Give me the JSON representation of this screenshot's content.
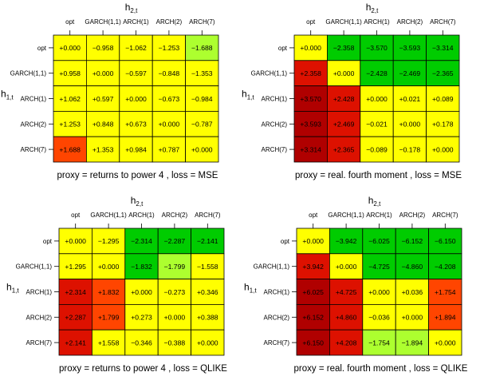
{
  "colors": {
    "yellow": "#ffff00",
    "yellowgreen": "#adff2f",
    "green": "#00cc00",
    "orangered": "#ff4500",
    "red": "#dd1100",
    "darkred": "#b00000"
  },
  "chart_data": [
    {
      "type": "heatmap",
      "title": "proxy = returns to power 4 , loss = MSE",
      "xlabel": "h",
      "xlabel_sub": "2,t",
      "ylabel": "h",
      "ylabel_sub": "1,t",
      "col_labels": [
        "opt",
        "GARCH(1,1)",
        "ARCH(1)",
        "ARCH(2)",
        "ARCH(7)"
      ],
      "row_labels": [
        "opt",
        "GARCH(1,1)",
        "ARCH(1)",
        "ARCH(2)",
        "ARCH(7)"
      ],
      "cells": [
        [
          "+0.000",
          "−0.958",
          "−1.062",
          "−1.253",
          "−1.688"
        ],
        [
          "+0.958",
          "+0.000",
          "−0.597",
          "−0.848",
          "−1.353"
        ],
        [
          "+1.062",
          "+0.597",
          "+0.000",
          "−0.673",
          "−0.984"
        ],
        [
          "+1.253",
          "+0.848",
          "+0.673",
          "+0.000",
          "−0.787"
        ],
        [
          "+1.688",
          "+1.353",
          "+0.984",
          "+0.787",
          "+0.000"
        ]
      ],
      "colors": [
        [
          "yellow",
          "yellow",
          "yellow",
          "yellow",
          "yellowgreen"
        ],
        [
          "yellow",
          "yellow",
          "yellow",
          "yellow",
          "yellow"
        ],
        [
          "yellow",
          "yellow",
          "yellow",
          "yellow",
          "yellow"
        ],
        [
          "yellow",
          "yellow",
          "yellow",
          "yellow",
          "yellow"
        ],
        [
          "orangered",
          "yellow",
          "yellow",
          "yellow",
          "yellow"
        ]
      ]
    },
    {
      "type": "heatmap",
      "title": "proxy = real. fourth moment , loss = MSE",
      "xlabel": "h",
      "xlabel_sub": "2,t",
      "ylabel": "h",
      "ylabel_sub": "1,t",
      "col_labels": [
        "opt",
        "GARCH(1,1)",
        "ARCH(1)",
        "ARCH(2)",
        "ARCH(7)"
      ],
      "row_labels": [
        "opt",
        "GARCH(1,1)",
        "ARCH(1)",
        "ARCH(2)",
        "ARCH(7)"
      ],
      "cells": [
        [
          "+0.000",
          "−2.358",
          "−3.570",
          "−3.593",
          "−3.314"
        ],
        [
          "+2.358",
          "+0.000",
          "−2.428",
          "−2.469",
          "−2.365"
        ],
        [
          "+3.570",
          "+2.428",
          "+0.000",
          "+0.021",
          "+0.089"
        ],
        [
          "+3.593",
          "+2.469",
          "−0.021",
          "+0.000",
          "+0.178"
        ],
        [
          "+3.314",
          "+2.365",
          "−0.089",
          "−0.178",
          "+0.000"
        ]
      ],
      "colors": [
        [
          "yellow",
          "green",
          "green",
          "green",
          "green"
        ],
        [
          "red",
          "yellow",
          "green",
          "green",
          "green"
        ],
        [
          "darkred",
          "red",
          "yellow",
          "yellow",
          "yellow"
        ],
        [
          "darkred",
          "red",
          "yellow",
          "yellow",
          "yellow"
        ],
        [
          "darkred",
          "red",
          "yellow",
          "yellow",
          "yellow"
        ]
      ]
    },
    {
      "type": "heatmap",
      "title": "proxy = returns to power 4 , loss = QLIKE",
      "xlabel": "h",
      "xlabel_sub": "2,t",
      "ylabel": "h",
      "ylabel_sub": "1,t",
      "col_labels": [
        "opt",
        "GARCH(1,1)",
        "ARCH(1)",
        "ARCH(2)",
        "ARCH(7)"
      ],
      "row_labels": [
        "opt",
        "GARCH(1,1)",
        "ARCH(1)",
        "ARCH(2)",
        "ARCH(7)"
      ],
      "cells": [
        [
          "+0.000",
          "−1.295",
          "−2.314",
          "−2.287",
          "−2.141"
        ],
        [
          "+1.295",
          "+0.000",
          "−1.832",
          "−1.799",
          "−1.558"
        ],
        [
          "+2.314",
          "+1.832",
          "+0.000",
          "−0.273",
          "+0.346"
        ],
        [
          "+2.287",
          "+1.799",
          "+0.273",
          "+0.000",
          "+0.388"
        ],
        [
          "+2.141",
          "+1.558",
          "−0.346",
          "−0.388",
          "+0.000"
        ]
      ],
      "colors": [
        [
          "yellow",
          "yellow",
          "green",
          "green",
          "green"
        ],
        [
          "yellow",
          "yellow",
          "green",
          "yellowgreen",
          "yellow"
        ],
        [
          "red",
          "orangered",
          "yellow",
          "yellow",
          "yellow"
        ],
        [
          "red",
          "orangered",
          "yellow",
          "yellow",
          "yellow"
        ],
        [
          "red",
          "yellow",
          "yellow",
          "yellow",
          "yellow"
        ]
      ]
    },
    {
      "type": "heatmap",
      "title": "proxy = real. fourth moment , loss = QLIKE",
      "xlabel": "h",
      "xlabel_sub": "2,t",
      "ylabel": "h",
      "ylabel_sub": "1,t",
      "col_labels": [
        "opt",
        "GARCH(1,1)",
        "ARCH(1)",
        "ARCH(2)",
        "ARCH(7)"
      ],
      "row_labels": [
        "opt",
        "GARCH(1,1)",
        "ARCH(1)",
        "ARCH(2)",
        "ARCH(7)"
      ],
      "cells": [
        [
          "+0.000",
          "−3.942",
          "−6.025",
          "−6.152",
          "−6.150"
        ],
        [
          "+3.942",
          "+0.000",
          "−4.725",
          "−4.860",
          "−4.208"
        ],
        [
          "+6.025",
          "+4.725",
          "+0.000",
          "+0.036",
          "+1.754"
        ],
        [
          "+6.152",
          "+4.860",
          "−0.036",
          "+0.000",
          "+1.894"
        ],
        [
          "+6.150",
          "+4.208",
          "−1.754",
          "−1.894",
          "+0.000"
        ]
      ],
      "colors": [
        [
          "yellow",
          "green",
          "green",
          "green",
          "green"
        ],
        [
          "red",
          "yellow",
          "green",
          "green",
          "green"
        ],
        [
          "darkred",
          "red",
          "yellow",
          "yellow",
          "orangered"
        ],
        [
          "darkred",
          "red",
          "yellow",
          "yellow",
          "orangered"
        ],
        [
          "darkred",
          "red",
          "yellowgreen",
          "yellowgreen",
          "yellow"
        ]
      ]
    }
  ]
}
